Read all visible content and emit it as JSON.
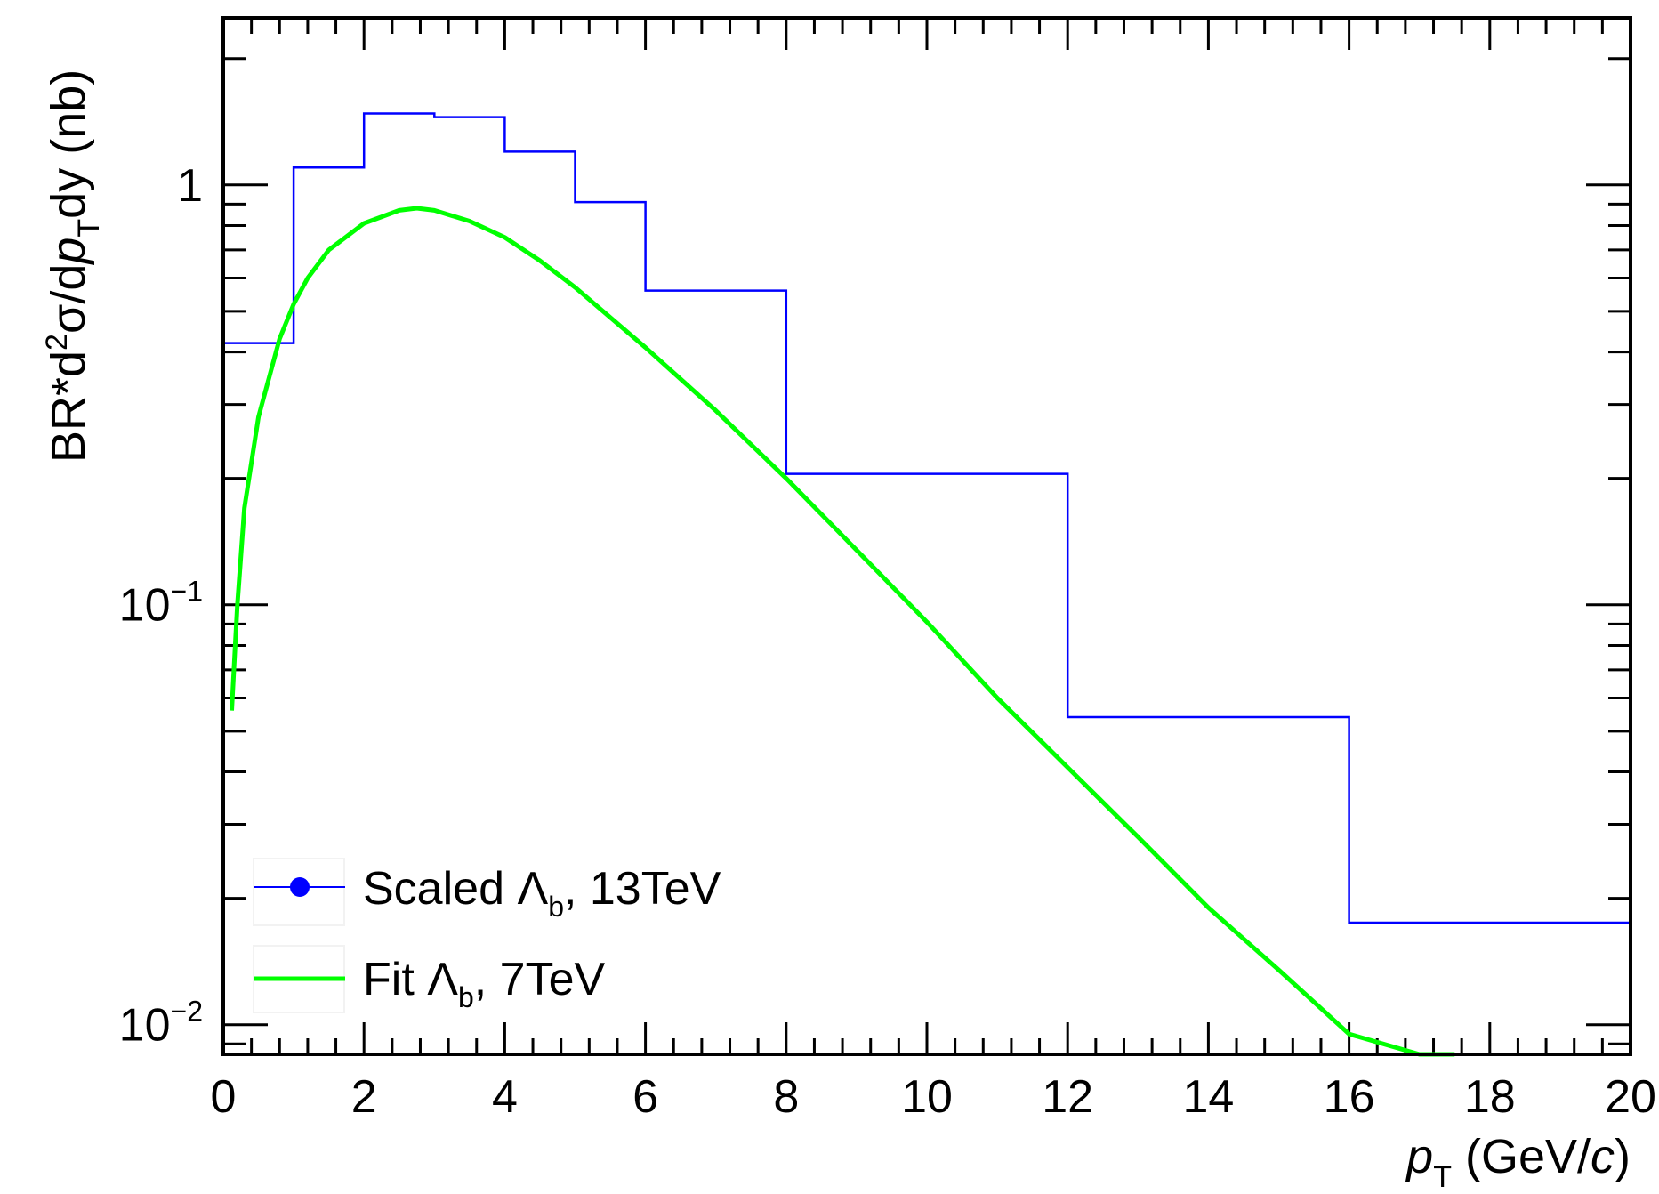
{
  "chart_data": {
    "type": "histogram-line",
    "title": "",
    "xlabel": {
      "var": "p",
      "sub": "T",
      "unit_pre": " (GeV/",
      "unit_var": "c",
      "unit_post": ")"
    },
    "ylabel": {
      "pre": "BR*d",
      "sup": "2",
      "mid": "σ/d",
      "var": "p",
      "sub": "T",
      "post": "dy (nb)"
    },
    "xlim": [
      0,
      20
    ],
    "ylim": [
      0.0085,
      2.5
    ],
    "yscale": "log",
    "xticks": [
      0,
      2,
      4,
      6,
      8,
      10,
      12,
      14,
      16,
      18,
      20
    ],
    "xtick_labels": [
      "0",
      "2",
      "4",
      "6",
      "8",
      "10",
      "12",
      "14",
      "16",
      "18",
      "20"
    ],
    "yticks": [
      {
        "value": 1,
        "base": "1",
        "exp": ""
      },
      {
        "value": 0.1,
        "base": "10",
        "exp": "−1"
      },
      {
        "value": 0.01,
        "base": "10",
        "exp": "−2"
      }
    ],
    "grid": false,
    "legend_position": "bottom-left",
    "series": [
      {
        "name": "Scaled Λ_b, 13TeV",
        "label_pre": "Scaled Λ",
        "label_sub": "b",
        "label_post": ", 13TeV",
        "type": "step",
        "color": "#0000ff",
        "bin_edges": [
          0,
          1,
          2,
          3,
          4,
          5,
          6,
          8,
          12,
          16,
          20
        ],
        "values": [
          0.42,
          1.1,
          1.48,
          1.45,
          1.2,
          0.91,
          0.56,
          0.205,
          0.054,
          0.0175
        ]
      },
      {
        "name": "Fit Λ_b, 7TeV",
        "label_pre": "Fit Λ",
        "label_sub": "b",
        "label_post": ", 7TeV",
        "type": "line",
        "color": "#00ff00",
        "x": [
          0.12,
          0.2,
          0.3,
          0.5,
          0.8,
          1.0,
          1.2,
          1.5,
          2.0,
          2.5,
          2.75,
          3.0,
          3.5,
          4.0,
          4.5,
          5.0,
          6.0,
          7.0,
          8.0,
          9.0,
          10.0,
          11.0,
          12.0,
          13.0,
          14.0,
          15.0,
          16.0,
          17.0,
          17.5
        ],
        "y": [
          0.056,
          0.1,
          0.17,
          0.28,
          0.43,
          0.52,
          0.6,
          0.7,
          0.81,
          0.87,
          0.88,
          0.87,
          0.82,
          0.75,
          0.66,
          0.57,
          0.41,
          0.29,
          0.2,
          0.135,
          0.091,
          0.06,
          0.041,
          0.028,
          0.019,
          0.0135,
          0.0095,
          0.0085,
          0.0085
        ]
      }
    ]
  }
}
